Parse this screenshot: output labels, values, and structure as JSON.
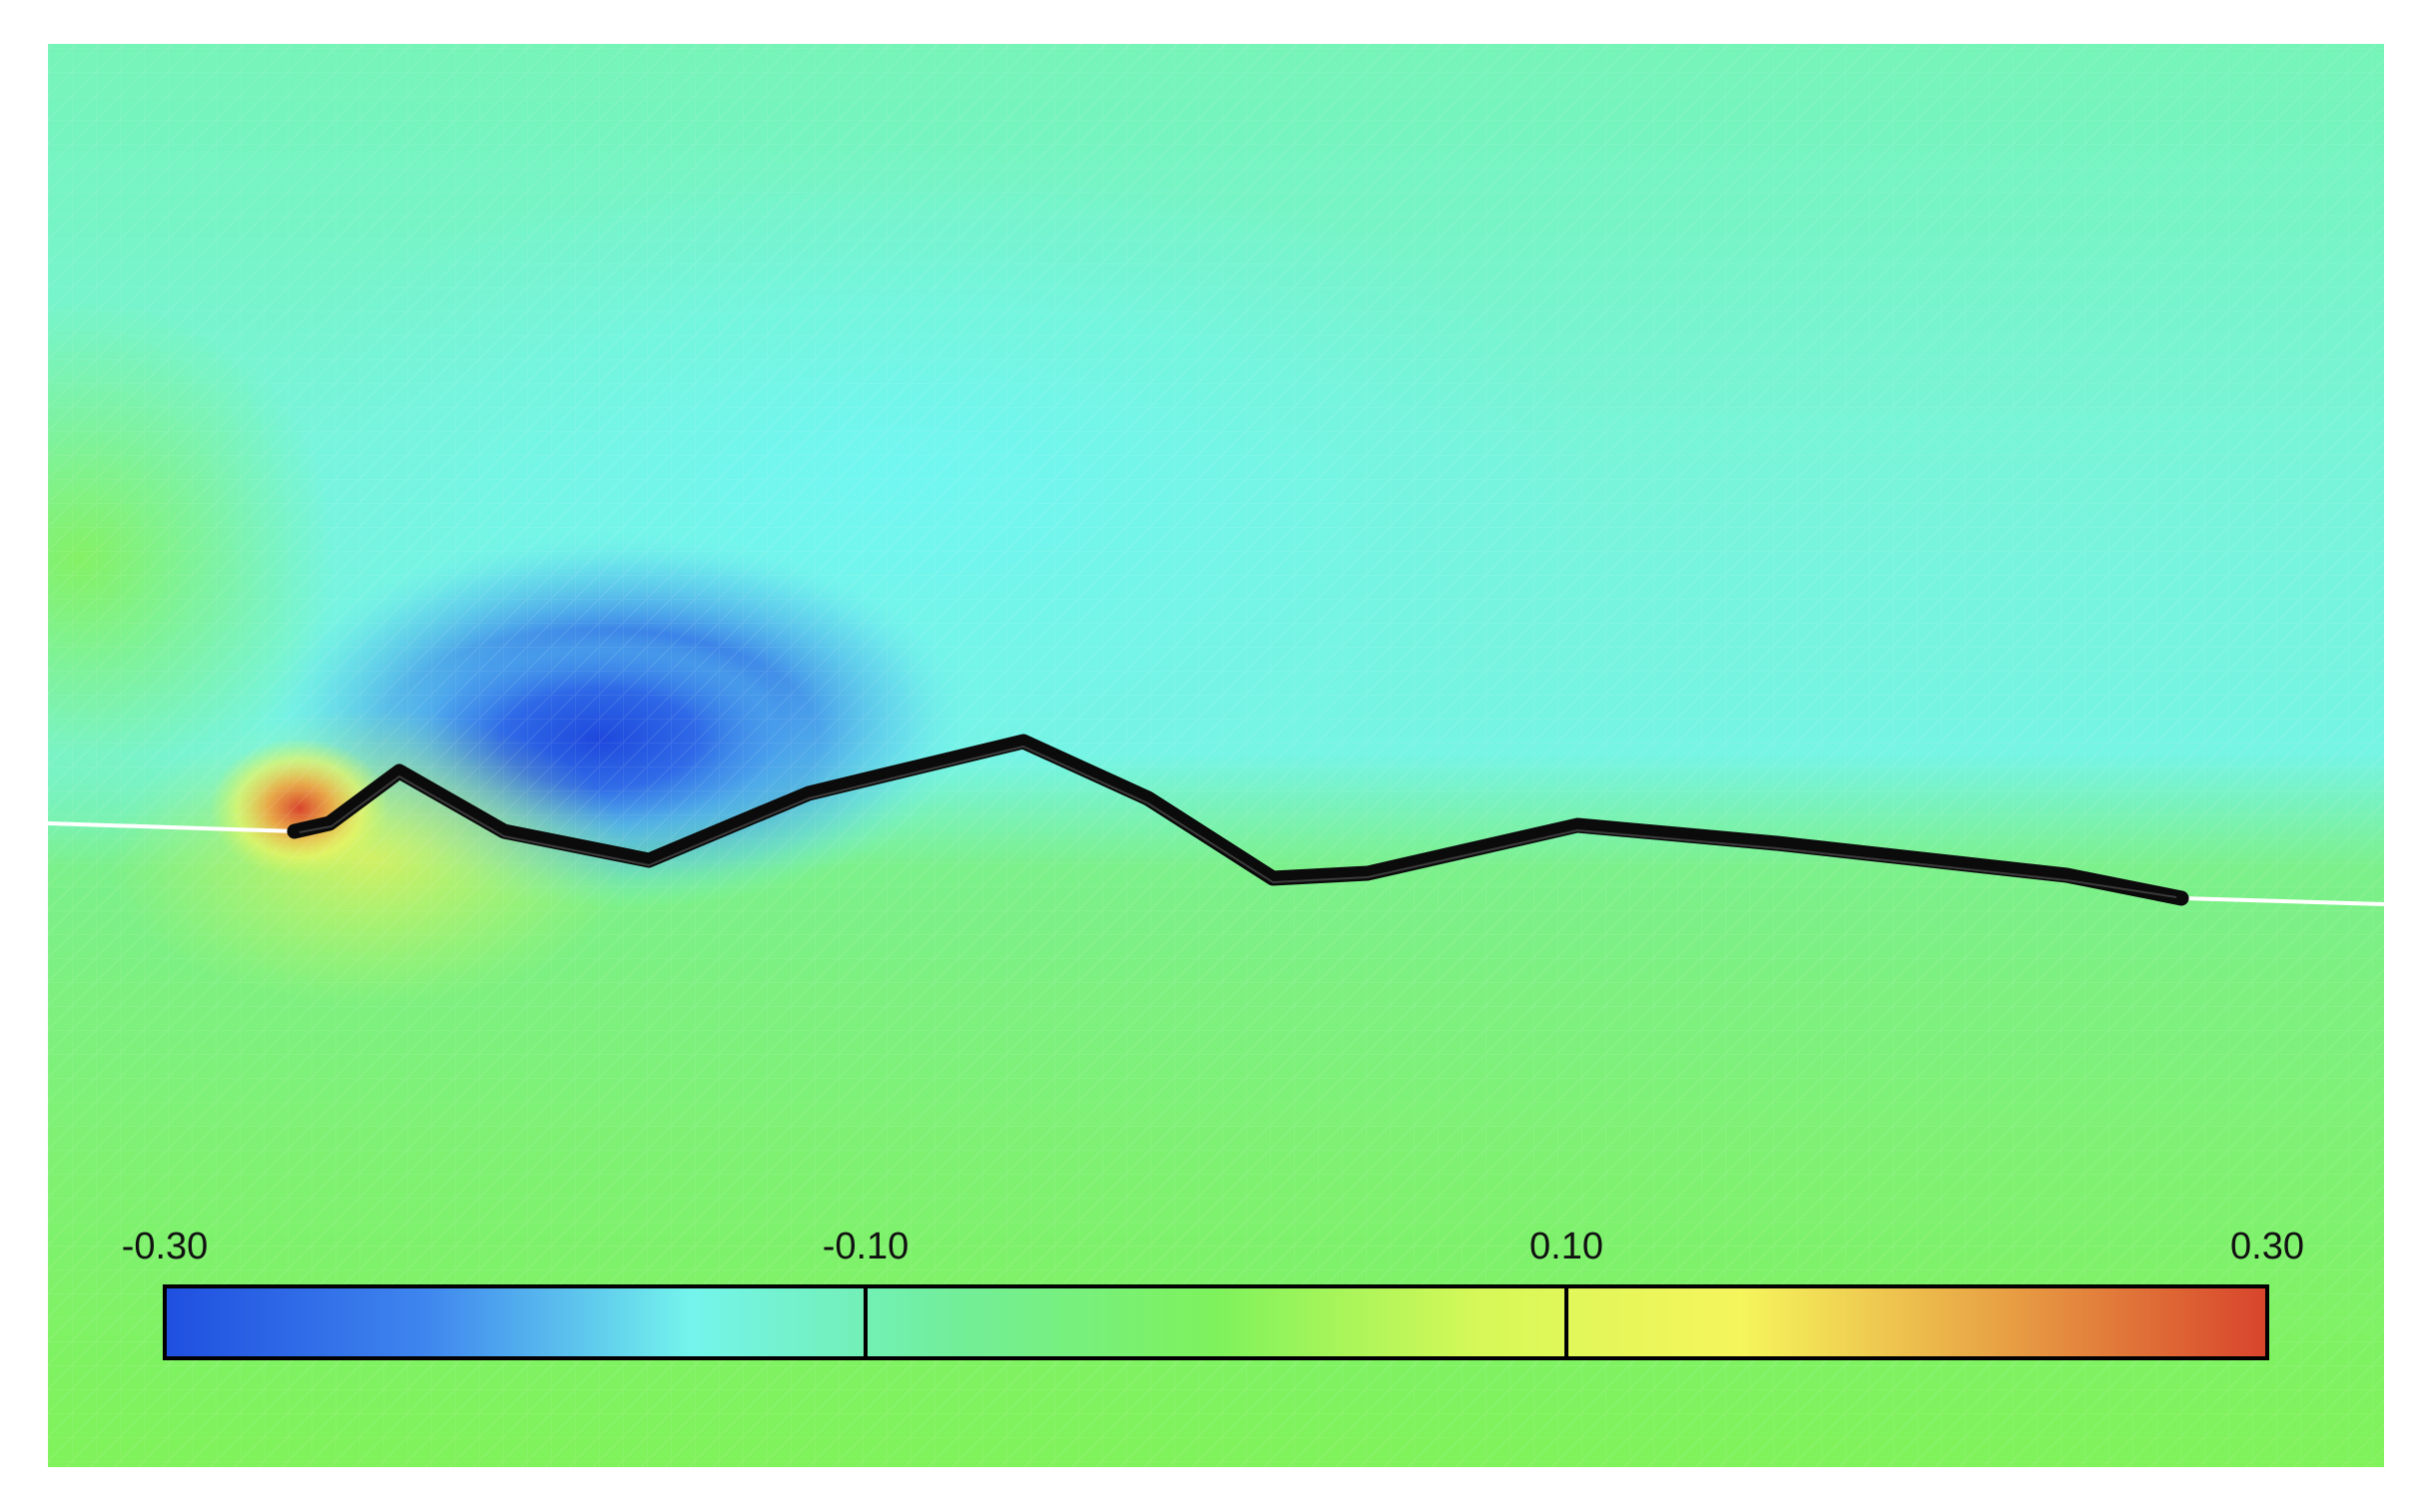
{
  "colorbar": {
    "min": -0.3,
    "max": 0.3,
    "tick_labels": [
      "-0.30",
      "-0.10",
      "0.10",
      "0.30"
    ],
    "tick_values": [
      -0.3,
      -0.1,
      0.1,
      0.3
    ],
    "colors": [
      "#1f4fe0",
      "#3f86ee",
      "#74f4ec",
      "#72ee9a",
      "#7ef25c",
      "#d6f858",
      "#f5f55c",
      "#e8a044",
      "#d8442c"
    ]
  }
}
